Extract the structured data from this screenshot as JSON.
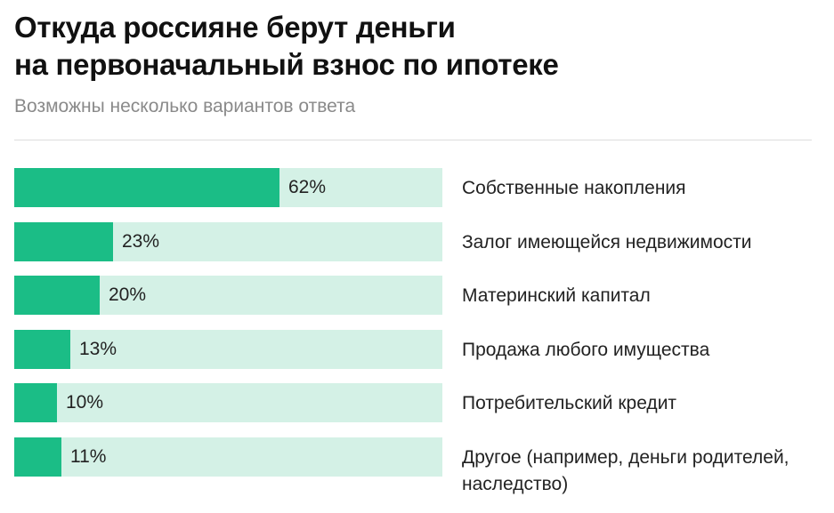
{
  "colors": {
    "fill": "#1bbd86",
    "track": "#d4f1e6"
  },
  "chart_data": {
    "type": "bar",
    "orientation": "horizontal",
    "title": "Откуда россияне берут деньги\nна первоначальный взнос по ипотеке",
    "subtitle": "Возможны несколько вариантов ответа",
    "xlim": [
      0,
      100
    ],
    "unit": "%",
    "categories": [
      "Собственные накопления",
      "Залог имеющейся недвижимости",
      "Материнский капитал",
      "Продажа любого имущества",
      "Потребительский кредит",
      "Другое (например, деньги родителей, наследство)"
    ],
    "values": [
      62,
      23,
      20,
      13,
      10,
      11
    ],
    "value_labels": [
      "62%",
      "23%",
      "20%",
      "13%",
      "10%",
      "11%"
    ]
  }
}
